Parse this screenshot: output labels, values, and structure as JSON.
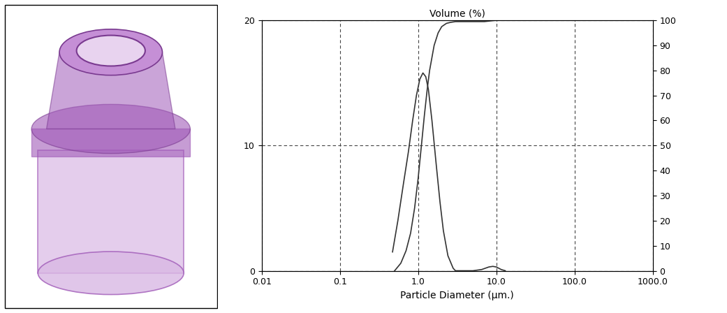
{
  "chart_data": {
    "type": "line",
    "title": "Volume (%)",
    "x_label": "Particle Diameter (µm.)",
    "log": "x",
    "grid": true,
    "xlim": [
      0.01,
      1000
    ],
    "xticks": [
      0.01,
      0.1,
      {
        "value": 1,
        "label": "1.0"
      },
      {
        "value": 10,
        "label": "10.0"
      },
      {
        "value": 100,
        "label": "100.0"
      },
      {
        "value": 1000,
        "label": "1000.0"
      }
    ],
    "ylim": [
      0,
      20
    ],
    "yticks": [
      0,
      10,
      20
    ],
    "y2lim": [
      0,
      100
    ],
    "y2ticks": [
      0,
      10,
      20,
      30,
      40,
      50,
      60,
      70,
      80,
      90,
      100
    ],
    "series": [
      {
        "type": "line",
        "color": "#333333",
        "line_style": "solid",
        "x": [
          0.47,
          0.55,
          0.65,
          0.75,
          0.85,
          0.95,
          1.05,
          1.15,
          1.25,
          1.35,
          1.5,
          1.7,
          1.9,
          2.1,
          2.4,
          2.8,
          3.0,
          5.0,
          6.5,
          8.0,
          9.0,
          10.0,
          11.5,
          13.0
        ],
        "values": [
          1.5,
          4.0,
          7.0,
          9.5,
          12.0,
          14.0,
          15.3,
          15.8,
          15.5,
          14.5,
          12.0,
          8.5,
          5.5,
          3.2,
          1.2,
          0.2,
          0,
          0,
          0.1,
          0.3,
          0.35,
          0.3,
          0.1,
          0
        ]
      },
      {
        "type": "line",
        "color": "#333333",
        "line_style": "solid",
        "axis": "y2",
        "x": [
          0.5,
          0.6,
          0.7,
          0.8,
          0.9,
          1.0,
          1.1,
          1.2,
          1.3,
          1.4,
          1.6,
          1.8,
          2.0,
          2.3,
          2.6,
          3.0,
          5.0,
          7.0,
          8.0,
          9.0,
          10.0,
          12.0,
          20.0,
          50.0,
          100.0,
          200.0
        ],
        "values": [
          0,
          3,
          8,
          15,
          25,
          37,
          50,
          62,
          72,
          80,
          90,
          95,
          97.5,
          98.8,
          99.2,
          99.5,
          99.5,
          99.5,
          99.7,
          99.9,
          100,
          100,
          100,
          100,
          100,
          100
        ]
      }
    ]
  }
}
